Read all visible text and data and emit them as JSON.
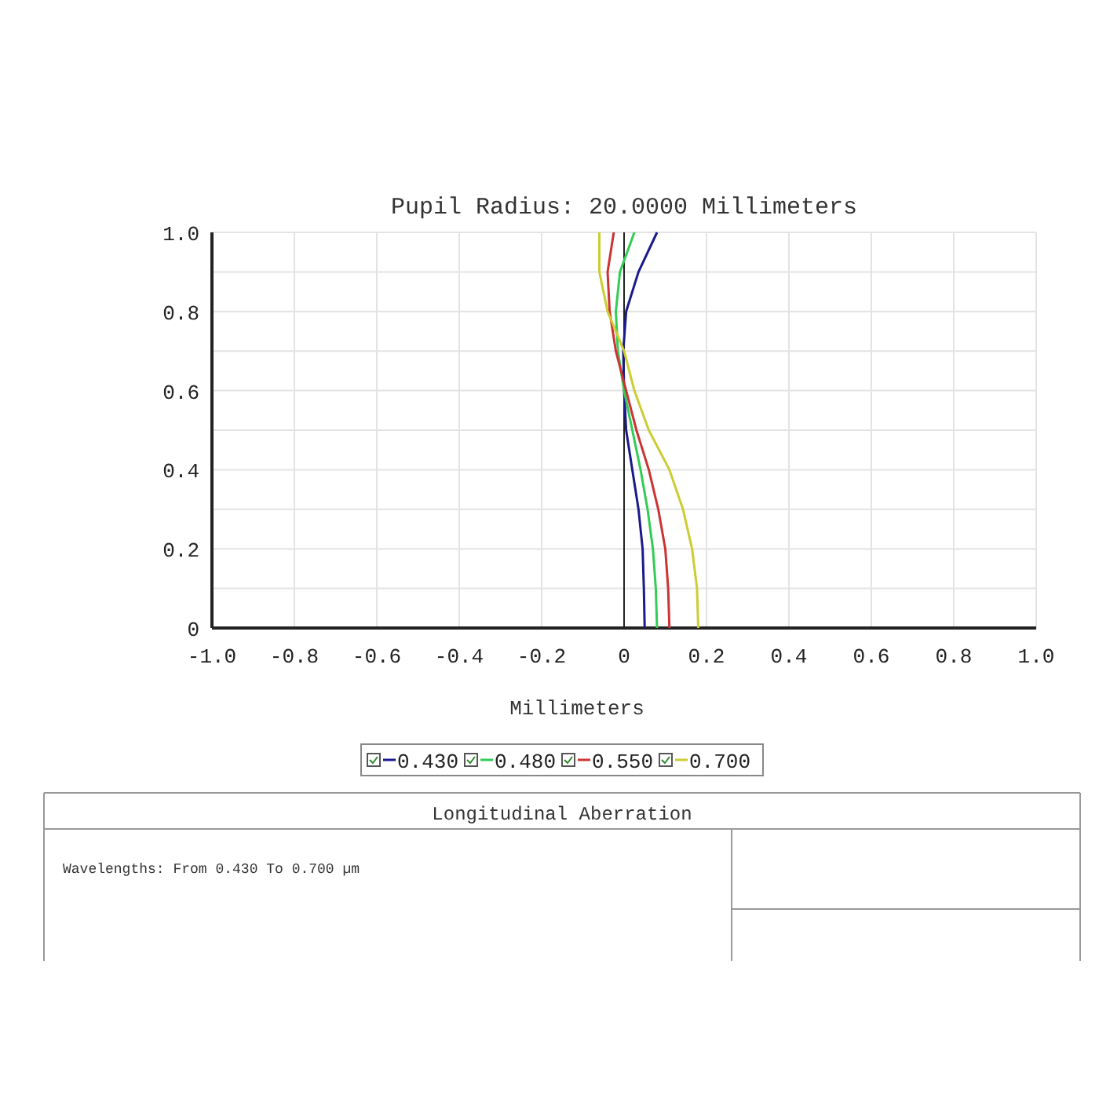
{
  "chart_data": {
    "type": "line",
    "title": "Pupil Radius: 20.0000 Millimeters",
    "xlabel": "Millimeters",
    "annotations": [
      "Longitudinal Aberration",
      "Wavelengths: From 0.430 To 0.700 µm"
    ],
    "xlim": [
      -1,
      1
    ],
    "ylim": [
      0,
      1
    ],
    "xticks": [
      {
        "value": -1,
        "label": "-1.0"
      },
      -0.8,
      -0.6,
      -0.4,
      -0.2,
      0,
      0.2,
      0.4,
      0.6,
      0.8,
      {
        "value": 1,
        "label": "1.0"
      }
    ],
    "yticks": [
      0,
      {
        "value": 0.1,
        "label": null
      },
      0.2,
      {
        "value": 0.3,
        "label": null
      },
      0.4,
      {
        "value": 0.5,
        "label": null
      },
      0.6,
      {
        "value": 0.7,
        "label": null
      },
      0.8,
      {
        "value": 0.9,
        "label": null
      },
      {
        "value": 1,
        "label": "1.0"
      }
    ],
    "grid": true,
    "legend": "bottom",
    "marker": "none",
    "line_style": "solid",
    "series": [
      {
        "name": "0.430",
        "color": "#1a1a8c",
        "x": [
          0.05,
          0.048,
          0.045,
          0.035,
          0.02,
          0.005,
          0,
          -0.002,
          0.005,
          0.035,
          0.08
        ],
        "values": [
          0,
          0.1,
          0.2,
          0.3,
          0.4,
          0.5,
          0.6,
          0.7,
          0.8,
          0.9,
          1
        ]
      },
      {
        "name": "0.480",
        "color": "#33cc55",
        "x": [
          0.08,
          0.077,
          0.07,
          0.057,
          0.04,
          0.02,
          0,
          -0.015,
          -0.02,
          -0.01,
          0.025
        ],
        "values": [
          0,
          0.1,
          0.2,
          0.3,
          0.4,
          0.5,
          0.6,
          0.7,
          0.8,
          0.9,
          1
        ]
      },
      {
        "name": "0.550",
        "color": "#cc3333",
        "x": [
          0.11,
          0.107,
          0.1,
          0.083,
          0.06,
          0.03,
          0.005,
          -0.02,
          -0.035,
          -0.04,
          -0.025
        ],
        "values": [
          0,
          0.1,
          0.2,
          0.3,
          0.4,
          0.5,
          0.6,
          0.7,
          0.8,
          0.9,
          1
        ]
      },
      {
        "name": "0.700",
        "color": "#cccc33",
        "x": [
          0.18,
          0.177,
          0.165,
          0.143,
          0.11,
          0.06,
          0.025,
          0,
          -0.04,
          -0.06,
          -0.06
        ],
        "values": [
          0,
          0.1,
          0.2,
          0.3,
          0.4,
          0.5,
          0.6,
          0.7,
          0.8,
          0.9,
          1
        ]
      }
    ]
  }
}
